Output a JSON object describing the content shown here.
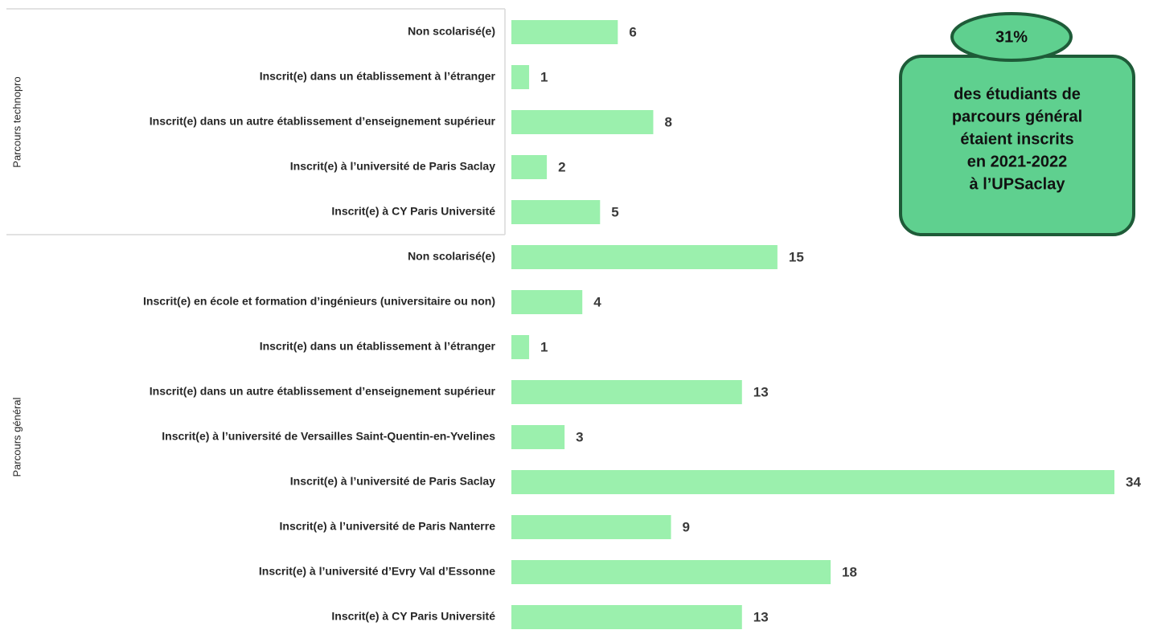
{
  "chart_data": {
    "type": "bar",
    "orientation": "horizontal",
    "color": "#9bf0ad",
    "groups": [
      {
        "name": "Parcours technopro",
        "categories": [
          "Non scolarisé(e)",
          "Inscrit(e) dans un établissement à l’étranger",
          "Inscrit(e) dans un autre établissement d’enseignement supérieur",
          "Inscrit(e) à l’université de Paris Saclay",
          "Inscrit(e) à CY Paris Université"
        ],
        "values": [
          6,
          1,
          8,
          2,
          5
        ]
      },
      {
        "name": "Parcours général",
        "categories": [
          "Non scolarisé(e)",
          "Inscrit(e) en école et formation d’ingénieurs (universitaire ou non)",
          "Inscrit(e) dans un établissement à l’étranger",
          "Inscrit(e) dans un autre établissement d’enseignement supérieur",
          "Inscrit(e) à l’université de Versailles Saint-Quentin-en-Yvelines",
          "Inscrit(e) à l’université de Paris Saclay",
          "Inscrit(e) à l’université de Paris Nanterre",
          "Inscrit(e) à l’université d’Evry Val d’Essonne",
          "Inscrit(e) à CY Paris Université"
        ],
        "values": [
          15,
          4,
          1,
          13,
          3,
          34,
          9,
          18,
          13
        ]
      }
    ],
    "callout": {
      "title": "31%",
      "lines": [
        "des étudiants de",
        "parcours général",
        "étaient inscrits",
        "en 2021-2022",
        "à l’UPSaclay"
      ]
    }
  }
}
